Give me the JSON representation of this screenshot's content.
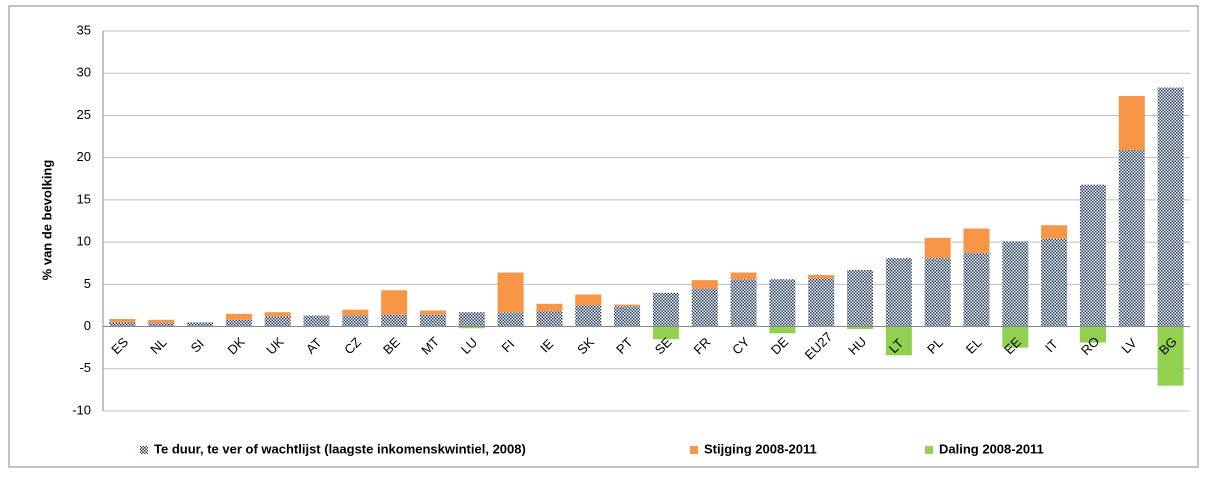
{
  "chart_data": {
    "type": "stacked-bar",
    "y_label": "% van de bevolking",
    "categories": [
      "ES",
      "NL",
      "SI",
      "DK",
      "UK",
      "AT",
      "CZ",
      "BE",
      "MT",
      "LU",
      "FI",
      "IE",
      "SK",
      "PT",
      "SE",
      "FR",
      "CY",
      "DE",
      "EU27",
      "HU",
      "LT",
      "PL",
      "EL",
      "EE",
      "IT",
      "RO",
      "LV",
      "BG"
    ],
    "series": [
      {
        "name": "Te duur, te ver of wachtlijst (laagste inkomenskwintiel, 2008)",
        "color": "#1f3864",
        "pattern": "checker",
        "values": [
          0.5,
          0.4,
          0.5,
          0.8,
          1.2,
          1.3,
          1.3,
          1.4,
          1.4,
          1.7,
          1.7,
          1.8,
          2.5,
          2.4,
          4.0,
          4.5,
          5.6,
          5.6,
          5.7,
          6.7,
          8.1,
          8.1,
          8.7,
          10.1,
          10.4,
          16.8,
          20.9,
          28.3
        ]
      },
      {
        "name": "Stijging 2008-2011",
        "color": "#f79646",
        "values": [
          0.4,
          0.4,
          0,
          0.7,
          0.5,
          0,
          0.7,
          2.9,
          0.5,
          0,
          4.7,
          0.9,
          1.3,
          0.2,
          0,
          1.0,
          0.8,
          0,
          0.4,
          0,
          0,
          2.4,
          2.9,
          0,
          1.6,
          0,
          6.4,
          0
        ]
      },
      {
        "name": "Daling 2008-2011",
        "color": "#92d050",
        "direction": "down",
        "values": [
          0,
          0,
          0,
          0,
          0,
          0,
          0,
          0,
          0,
          0.2,
          0,
          0,
          0,
          0,
          1.5,
          0,
          0,
          0.8,
          0,
          0.3,
          3.4,
          0,
          0,
          2.5,
          0,
          1.9,
          0,
          7.0
        ]
      }
    ],
    "ylim": [
      -10,
      35
    ],
    "yticks": [
      -10,
      -5,
      0,
      5,
      10,
      15,
      20,
      25,
      30,
      35
    ],
    "grid": true,
    "legend": "bottom"
  }
}
